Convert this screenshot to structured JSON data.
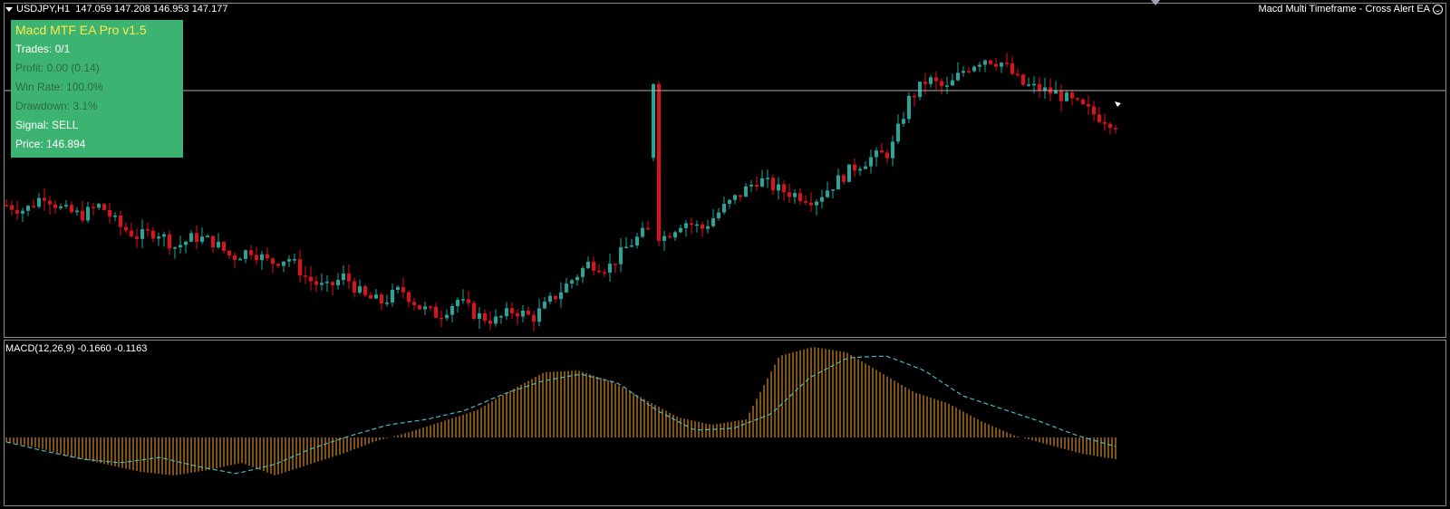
{
  "header": {
    "symbol": "USDJPY,H1",
    "ohlc": "147.059 147.208 146.953 147.177",
    "ea_name": "Macd Multi Timeframe - Cross Alert EA"
  },
  "info_panel": {
    "title": "Macd MTF EA Pro v1.5",
    "trades": "Trades: 0/1",
    "profit": "Profit: 0.00 (0.14)",
    "win_rate": "Win Rate: 100.0%",
    "drawdown": "Drawdown: 3.1%",
    "signal": "Signal: SELL",
    "price": "Price: 146.894",
    "bg_color": "#3cb371",
    "title_color": "#ffe84d"
  },
  "macd_header": "MACD(12,26,9) -0.1660 -0.1163",
  "colors": {
    "bull": "#26a69a",
    "bear": "#e0101a",
    "histogram": "#d4892a",
    "signal_line": "#4cb6c4",
    "price_line": "#b0b0b0",
    "grid_frame": "#8a8a8a"
  },
  "chart_data": [
    {
      "type": "candlestick",
      "symbol": "USDJPY",
      "timeframe": "H1",
      "current_bar": {
        "open": 147.059,
        "high": 147.208,
        "low": 146.953,
        "close": 147.177
      },
      "price_path": [
        0.72,
        0.7,
        0.76,
        0.7,
        0.68,
        0.72,
        0.64,
        0.6,
        0.62,
        0.56,
        0.6,
        0.58,
        0.52,
        0.55,
        0.5,
        0.52,
        0.44,
        0.4,
        0.45,
        0.37,
        0.35,
        0.4,
        0.33,
        0.3,
        0.36,
        0.3,
        0.28,
        0.32,
        0.29,
        0.36,
        0.43,
        0.5,
        0.48,
        0.56,
        0.62,
        0.6,
        0.66,
        0.63,
        0.7,
        0.76,
        0.82,
        0.78,
        0.76,
        0.74,
        0.8,
        0.86,
        0.9,
        0.92,
        1.12,
        1.2,
        1.16,
        1.24,
        1.28,
        1.26,
        1.18,
        1.16,
        1.14,
        1.1,
        1.06,
        1.03
      ]
    },
    {
      "type": "bar",
      "indicator": "MACD(12,26,9)",
      "main": -0.166,
      "signal": -0.1163,
      "histogram_path": [
        -0.05,
        -0.12,
        -0.22,
        -0.3,
        -0.38,
        -0.42,
        -0.36,
        -0.28,
        -0.42,
        -0.3,
        -0.18,
        -0.04,
        0.06,
        0.18,
        0.3,
        0.52,
        0.72,
        0.74,
        0.62,
        0.42,
        0.22,
        0.14,
        0.2,
        0.9,
        1.0,
        0.94,
        0.72,
        0.5,
        0.38,
        0.18,
        0.02,
        -0.08,
        -0.18,
        -0.24
      ],
      "signal_path": [
        -0.05,
        -0.15,
        -0.24,
        -0.28,
        -0.22,
        -0.32,
        -0.4,
        -0.3,
        -0.12,
        0.02,
        0.14,
        0.2,
        0.3,
        0.48,
        0.62,
        0.7,
        0.6,
        0.3,
        0.08,
        0.1,
        0.26,
        0.66,
        0.88,
        0.9,
        0.74,
        0.46,
        0.32,
        0.18,
        0.02,
        -0.1
      ]
    }
  ]
}
